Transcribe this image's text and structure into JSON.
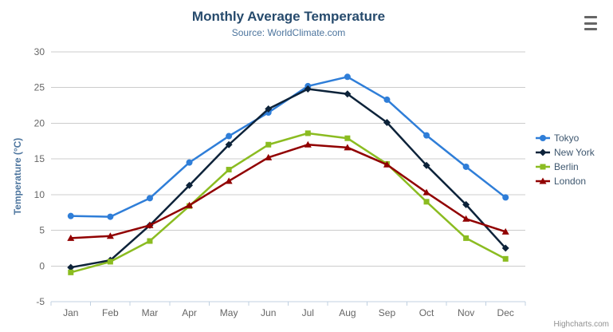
{
  "chart_data": {
    "type": "line",
    "title": "Monthly Average Temperature",
    "subtitle": "Source: WorldClimate.com",
    "xlabel": "",
    "ylabel": "Temperature (°C)",
    "ylim": [
      -5,
      30
    ],
    "y_ticks": [
      -5,
      0,
      5,
      10,
      15,
      20,
      25,
      30
    ],
    "categories": [
      "Jan",
      "Feb",
      "Mar",
      "Apr",
      "May",
      "Jun",
      "Jul",
      "Aug",
      "Sep",
      "Oct",
      "Nov",
      "Dec"
    ],
    "grid": true,
    "legend_position": "right",
    "series": [
      {
        "name": "Tokyo",
        "color": "#2f7ed8",
        "marker": "circle",
        "values": [
          7.0,
          6.9,
          9.5,
          14.5,
          18.2,
          21.5,
          25.2,
          26.5,
          23.3,
          18.3,
          13.9,
          9.6
        ]
      },
      {
        "name": "New York",
        "color": "#0d233a",
        "marker": "diamond",
        "values": [
          -0.2,
          0.8,
          5.7,
          11.3,
          17.0,
          22.0,
          24.8,
          24.1,
          20.1,
          14.1,
          8.6,
          2.5
        ]
      },
      {
        "name": "Berlin",
        "color": "#8bbc21",
        "marker": "square",
        "values": [
          -0.9,
          0.6,
          3.5,
          8.4,
          13.5,
          17.0,
          18.6,
          17.9,
          14.3,
          9.0,
          3.9,
          1.0
        ]
      },
      {
        "name": "London",
        "color": "#910000",
        "marker": "triangle",
        "values": [
          3.9,
          4.2,
          5.7,
          8.5,
          11.9,
          15.2,
          17.0,
          16.6,
          14.2,
          10.3,
          6.6,
          4.8
        ]
      }
    ]
  },
  "credits": "Highcharts.com",
  "colors": {
    "title": "#274b6d",
    "subtitle": "#4d759e",
    "axis_title": "#4d759e",
    "axis_labels": "#666666",
    "grid_line": "#cccccc",
    "axis_line": "#c0d0e0",
    "legend_text": "#3e576f",
    "credits": "#909090",
    "menu_icon": "#666666"
  }
}
